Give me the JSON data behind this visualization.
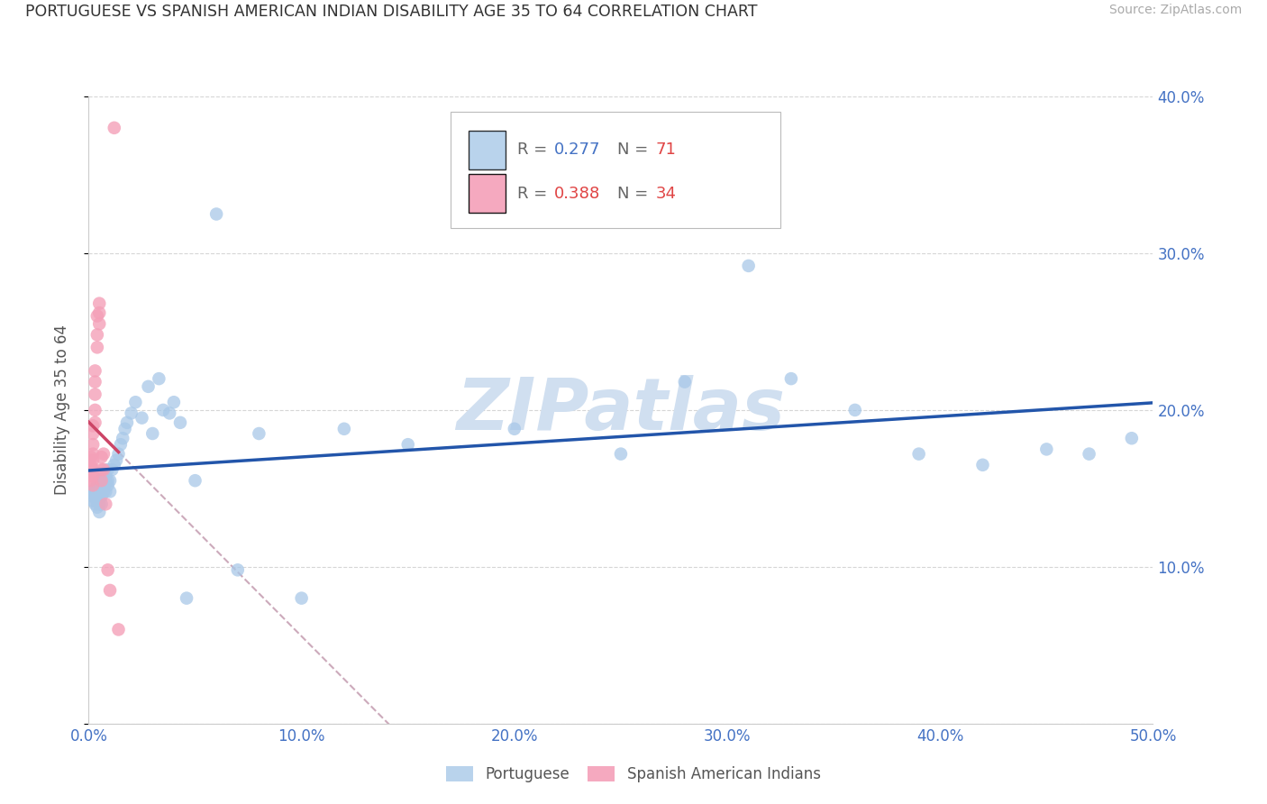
{
  "title": "PORTUGUESE VS SPANISH AMERICAN INDIAN DISABILITY AGE 35 TO 64 CORRELATION CHART",
  "source": "Source: ZipAtlas.com",
  "ylabel": "Disability Age 35 to 64",
  "xlim": [
    0.0,
    0.5
  ],
  "ylim": [
    0.0,
    0.4
  ],
  "xticks": [
    0.0,
    0.1,
    0.2,
    0.3,
    0.4,
    0.5
  ],
  "yticks": [
    0.0,
    0.1,
    0.2,
    0.3,
    0.4
  ],
  "xtick_labels": [
    "0.0%",
    "10.0%",
    "20.0%",
    "30.0%",
    "40.0%",
    "50.0%"
  ],
  "ytick_labels_right": [
    "",
    "10.0%",
    "20.0%",
    "30.0%",
    "40.0%"
  ],
  "portuguese_R": 0.277,
  "portuguese_N": 71,
  "spanish_R": 0.388,
  "spanish_N": 34,
  "blue_dot_color": "#a8c8e8",
  "pink_dot_color": "#f4a0b8",
  "blue_line_color": "#2255aa",
  "pink_line_color": "#cc4466",
  "dash_color": "#ccaabb",
  "watermark_color": "#d0dff0",
  "portuguese_x": [
    0.001,
    0.002,
    0.002,
    0.002,
    0.003,
    0.003,
    0.003,
    0.003,
    0.004,
    0.004,
    0.004,
    0.004,
    0.004,
    0.005,
    0.005,
    0.005,
    0.005,
    0.005,
    0.006,
    0.006,
    0.006,
    0.006,
    0.007,
    0.007,
    0.007,
    0.007,
    0.008,
    0.008,
    0.008,
    0.009,
    0.009,
    0.009,
    0.01,
    0.01,
    0.011,
    0.012,
    0.013,
    0.014,
    0.015,
    0.016,
    0.017,
    0.018,
    0.02,
    0.022,
    0.025,
    0.028,
    0.03,
    0.033,
    0.035,
    0.038,
    0.04,
    0.043,
    0.046,
    0.05,
    0.06,
    0.07,
    0.08,
    0.1,
    0.12,
    0.15,
    0.2,
    0.25,
    0.28,
    0.31,
    0.33,
    0.36,
    0.39,
    0.42,
    0.45,
    0.47,
    0.49
  ],
  "portuguese_y": [
    0.148,
    0.145,
    0.148,
    0.142,
    0.14,
    0.145,
    0.15,
    0.148,
    0.138,
    0.142,
    0.145,
    0.148,
    0.152,
    0.135,
    0.14,
    0.145,
    0.148,
    0.155,
    0.14,
    0.145,
    0.15,
    0.155,
    0.148,
    0.152,
    0.155,
    0.158,
    0.148,
    0.155,
    0.158,
    0.152,
    0.155,
    0.162,
    0.148,
    0.155,
    0.162,
    0.165,
    0.168,
    0.172,
    0.178,
    0.182,
    0.188,
    0.192,
    0.198,
    0.205,
    0.195,
    0.215,
    0.185,
    0.22,
    0.2,
    0.198,
    0.205,
    0.192,
    0.08,
    0.155,
    0.325,
    0.098,
    0.185,
    0.08,
    0.188,
    0.178,
    0.188,
    0.172,
    0.218,
    0.292,
    0.22,
    0.2,
    0.172,
    0.165,
    0.175,
    0.172,
    0.182
  ],
  "spanish_x": [
    0.001,
    0.001,
    0.001,
    0.001,
    0.001,
    0.002,
    0.002,
    0.002,
    0.002,
    0.002,
    0.002,
    0.002,
    0.002,
    0.003,
    0.003,
    0.003,
    0.003,
    0.003,
    0.004,
    0.004,
    0.004,
    0.005,
    0.005,
    0.005,
    0.006,
    0.006,
    0.006,
    0.007,
    0.007,
    0.008,
    0.009,
    0.01,
    0.012,
    0.014
  ],
  "spanish_y": [
    0.17,
    0.165,
    0.162,
    0.158,
    0.155,
    0.19,
    0.185,
    0.178,
    0.172,
    0.168,
    0.162,
    0.158,
    0.152,
    0.225,
    0.218,
    0.21,
    0.2,
    0.192,
    0.26,
    0.248,
    0.24,
    0.268,
    0.262,
    0.255,
    0.17,
    0.162,
    0.155,
    0.172,
    0.162,
    0.14,
    0.098,
    0.085,
    0.38,
    0.06
  ]
}
